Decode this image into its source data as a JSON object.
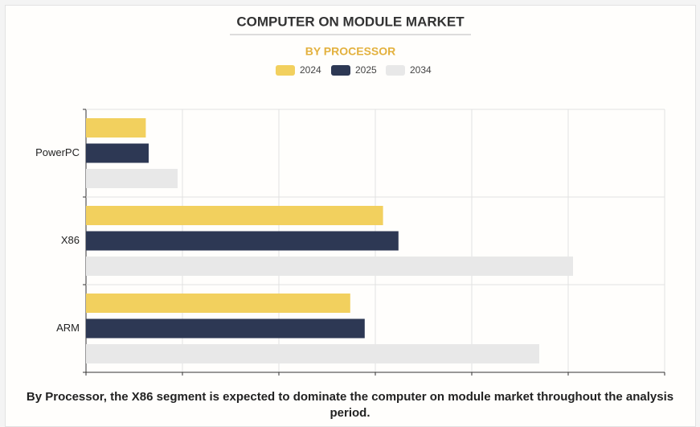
{
  "chart_data": {
    "type": "hbar",
    "title": "COMPUTER ON MODULE MARKET",
    "subtitle": "BY PROCESSOR",
    "categories": [
      "PowerPC",
      "X86",
      "ARM"
    ],
    "series": [
      {
        "name": "2024",
        "color": "#f2d05e",
        "values": [
          0.62,
          3.08,
          2.74
        ]
      },
      {
        "name": "2025",
        "color": "#2d3854",
        "values": [
          0.65,
          3.24,
          2.89
        ]
      },
      {
        "name": "2034",
        "color": "#e8e8e8",
        "values": [
          0.95,
          5.05,
          4.7
        ]
      }
    ],
    "xlim": [
      0,
      6
    ],
    "xticks": [
      0,
      1,
      2,
      3,
      4,
      5,
      6
    ],
    "grid": true,
    "caption": "By Processor, the X86 segment is expected to dominate the computer on module market throughout the analysis period."
  }
}
